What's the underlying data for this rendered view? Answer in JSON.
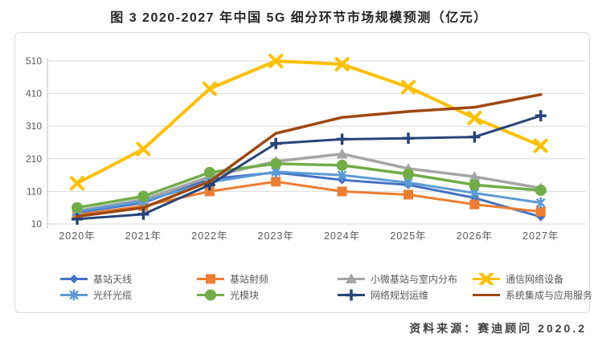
{
  "title": "图 3 2020-2027 年中国 5G 细分环节市场规模预测（亿元）",
  "source": "资料来源：赛迪顾问  2020.2",
  "chart_data": {
    "type": "line",
    "title": "图 3 2020-2027 年中国 5G 细分环节市场规模预测（亿元）",
    "xlabel": "",
    "ylabel": "",
    "x": [
      "2020年",
      "2021年",
      "2022年",
      "2023年",
      "2024年",
      "2025年",
      "2026年",
      "2027年"
    ],
    "ylim": [
      10,
      510
    ],
    "yticks": [
      10,
      110,
      210,
      310,
      410,
      510
    ],
    "grid": true,
    "legend_position": "bottom",
    "gridline_color": "#d9d9d9",
    "axis_line_color": "#bfbfbf",
    "tick_label_color": "#595959",
    "series": [
      {
        "name": "基站天线",
        "color": "#4472C4",
        "marker": "diamond",
        "line_width": 3,
        "values": [
          45,
          75,
          148,
          168,
          145,
          130,
          90,
          32
        ]
      },
      {
        "name": "基站射频",
        "color": "#ED7D31",
        "marker": "square",
        "line_width": 3,
        "values": [
          38,
          65,
          110,
          140,
          110,
          100,
          70,
          48
        ]
      },
      {
        "name": "小微基站与室内分布",
        "color": "#A5A5A5",
        "marker": "triangle",
        "line_width": 3.5,
        "values": [
          50,
          85,
          155,
          202,
          225,
          180,
          155,
          120
        ]
      },
      {
        "name": "通信网络设备",
        "color": "#FFC000",
        "marker": "x",
        "line_width": 4,
        "values": [
          135,
          240,
          425,
          510,
          500,
          430,
          335,
          250
        ]
      },
      {
        "name": "光纤光缆",
        "color": "#5B9BD5",
        "marker": "asterisk",
        "line_width": 3,
        "values": [
          48,
          80,
          138,
          170,
          160,
          137,
          105,
          75
        ]
      },
      {
        "name": "光模块",
        "color": "#70AD47",
        "marker": "circle",
        "line_width": 3.5,
        "values": [
          60,
          95,
          168,
          195,
          190,
          163,
          130,
          113
        ]
      },
      {
        "name": "网络规划运维",
        "color": "#264478",
        "marker": "plus",
        "line_width": 3,
        "values": [
          25,
          40,
          130,
          257,
          270,
          273,
          277,
          342
        ]
      },
      {
        "name": "系统集成与应用服务",
        "color": "#9E480E",
        "marker": "none",
        "line_width": 3.5,
        "values": [
          33,
          60,
          140,
          288,
          337,
          355,
          368,
          407
        ]
      }
    ],
    "legend_rows": [
      [
        0,
        1,
        2,
        3
      ],
      [
        4,
        5,
        6,
        7
      ]
    ]
  }
}
